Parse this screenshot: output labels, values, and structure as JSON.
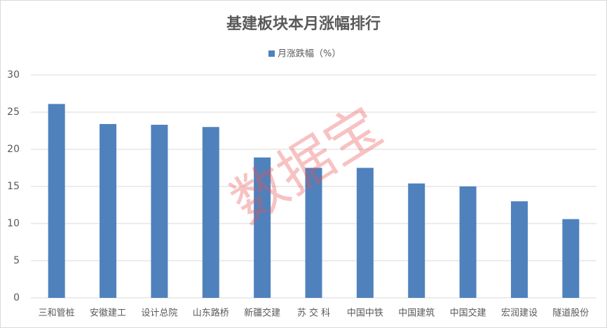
{
  "chart_data": {
    "type": "bar",
    "title": "基建板块本月涨幅排行",
    "categories": [
      "三和管桩",
      "安徽建工",
      "设计总院",
      "山东路桥",
      "新疆交建",
      "苏 交 科",
      "中国中铁",
      "中国建筑",
      "中国交建",
      "宏润建设",
      "隧道股份"
    ],
    "series": [
      {
        "name": "月涨跌幅（%）",
        "color": "#4f81bd",
        "values": [
          26.1,
          23.4,
          23.3,
          23.0,
          18.9,
          17.5,
          17.5,
          15.4,
          15.0,
          13.0,
          10.6
        ]
      }
    ],
    "ylim": [
      0,
      30
    ],
    "yticks": [
      0,
      5,
      10,
      15,
      20,
      25,
      30
    ],
    "grid": true,
    "watermark": "数据宝"
  }
}
